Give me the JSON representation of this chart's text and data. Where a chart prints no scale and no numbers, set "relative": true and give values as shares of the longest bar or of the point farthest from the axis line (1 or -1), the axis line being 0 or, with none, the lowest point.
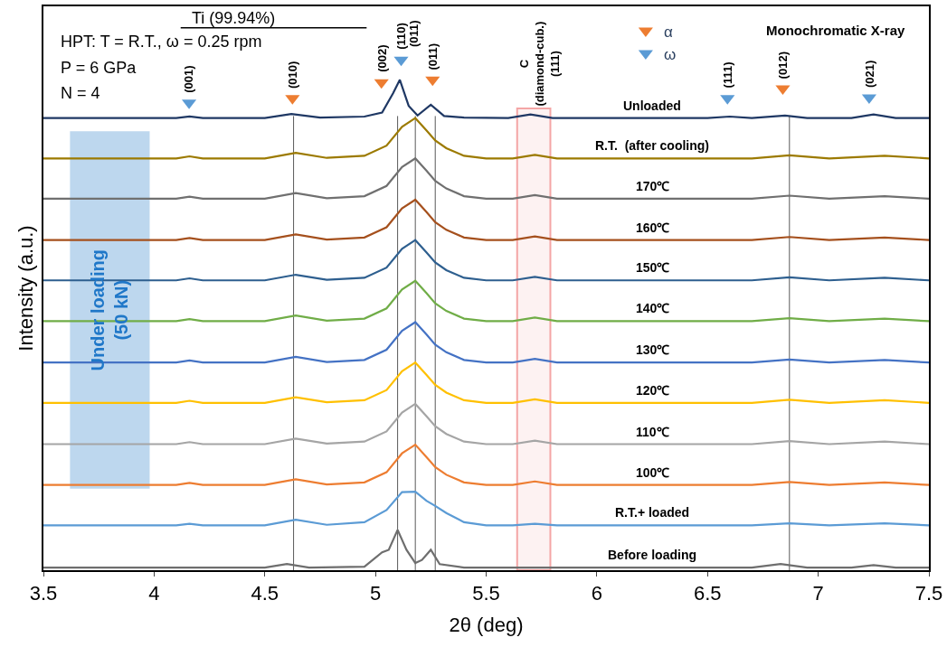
{
  "chart_data": {
    "type": "line",
    "relative": true,
    "xlabel": "2θ (deg)",
    "ylabel": "Intensity (a.u.)",
    "xlim": [
      3.5,
      7.5
    ],
    "xticks": [
      3.5,
      4,
      4.5,
      5,
      5.5,
      6,
      6.5,
      7,
      7.5
    ],
    "tick_labels": "x",
    "grid": false,
    "legend": "top right",
    "marker": "none",
    "line_style": "solid",
    "x": [
      3.5,
      4.1,
      4.16,
      4.22,
      4.5,
      4.64,
      4.78,
      4.95,
      5.05,
      5.12,
      5.18,
      5.23,
      5.27,
      5.32,
      5.4,
      5.5,
      5.62,
      5.72,
      5.82,
      6.7,
      6.87,
      7.05,
      7.3,
      7.5
    ],
    "series": [
      {
        "name": "Unloaded",
        "color": "#1f3864",
        "x": [
          3.5,
          4.1,
          4.16,
          4.22,
          4.5,
          4.62,
          4.75,
          4.95,
          5.03,
          5.08,
          5.11,
          5.15,
          5.19,
          5.25,
          5.31,
          5.4,
          5.6,
          5.7,
          5.8,
          6.5,
          6.6,
          6.7,
          6.85,
          6.95,
          7.15,
          7.25,
          7.35,
          7.5
        ],
        "values": [
          0.886,
          0.886,
          0.889,
          0.886,
          0.886,
          0.894,
          0.887,
          0.889,
          0.897,
          0.935,
          0.961,
          0.91,
          0.891,
          0.912,
          0.89,
          0.887,
          0.886,
          0.893,
          0.886,
          0.886,
          0.889,
          0.886,
          0.891,
          0.886,
          0.886,
          0.893,
          0.886,
          0.886
        ]
      },
      {
        "name": "R.T.  (after cooling)",
        "color": "#9c7a00",
        "values": [
          0.807,
          0.807,
          0.811,
          0.807,
          0.807,
          0.818,
          0.808,
          0.812,
          0.832,
          0.869,
          0.886,
          0.862,
          0.842,
          0.827,
          0.812,
          0.807,
          0.807,
          0.814,
          0.807,
          0.807,
          0.813,
          0.807,
          0.812,
          0.807
        ]
      },
      {
        "name": "170℃",
        "color": "#707070",
        "values": [
          0.728,
          0.728,
          0.732,
          0.728,
          0.728,
          0.739,
          0.729,
          0.733,
          0.753,
          0.79,
          0.807,
          0.783,
          0.763,
          0.748,
          0.733,
          0.728,
          0.728,
          0.735,
          0.728,
          0.728,
          0.734,
          0.728,
          0.733,
          0.728
        ]
      },
      {
        "name": "160℃",
        "color": "#a5501d",
        "values": [
          0.647,
          0.647,
          0.651,
          0.647,
          0.647,
          0.658,
          0.648,
          0.652,
          0.672,
          0.709,
          0.726,
          0.702,
          0.682,
          0.667,
          0.652,
          0.647,
          0.647,
          0.654,
          0.647,
          0.647,
          0.653,
          0.647,
          0.652,
          0.647
        ]
      },
      {
        "name": "150℃",
        "color": "#2e5f8f",
        "values": [
          0.568,
          0.568,
          0.572,
          0.568,
          0.568,
          0.579,
          0.569,
          0.573,
          0.593,
          0.63,
          0.647,
          0.623,
          0.603,
          0.588,
          0.573,
          0.568,
          0.568,
          0.575,
          0.568,
          0.568,
          0.574,
          0.568,
          0.573,
          0.568
        ]
      },
      {
        "name": "140℃",
        "color": "#70ad47",
        "values": [
          0.488,
          0.488,
          0.492,
          0.488,
          0.488,
          0.499,
          0.489,
          0.493,
          0.513,
          0.55,
          0.567,
          0.543,
          0.523,
          0.508,
          0.493,
          0.488,
          0.488,
          0.495,
          0.488,
          0.488,
          0.494,
          0.488,
          0.493,
          0.488
        ]
      },
      {
        "name": "130℃",
        "color": "#4472c4",
        "values": [
          0.407,
          0.407,
          0.411,
          0.407,
          0.407,
          0.418,
          0.408,
          0.412,
          0.432,
          0.469,
          0.486,
          0.462,
          0.442,
          0.427,
          0.412,
          0.407,
          0.407,
          0.414,
          0.407,
          0.407,
          0.413,
          0.407,
          0.412,
          0.407
        ]
      },
      {
        "name": "120℃",
        "color": "#ffc000",
        "values": [
          0.328,
          0.328,
          0.332,
          0.328,
          0.328,
          0.339,
          0.329,
          0.333,
          0.353,
          0.39,
          0.407,
          0.383,
          0.363,
          0.348,
          0.333,
          0.328,
          0.328,
          0.335,
          0.328,
          0.328,
          0.334,
          0.328,
          0.333,
          0.328
        ]
      },
      {
        "name": "110℃",
        "color": "#a5a5a5",
        "values": [
          0.247,
          0.247,
          0.251,
          0.247,
          0.247,
          0.258,
          0.248,
          0.252,
          0.272,
          0.309,
          0.326,
          0.302,
          0.282,
          0.267,
          0.252,
          0.247,
          0.247,
          0.254,
          0.247,
          0.247,
          0.253,
          0.247,
          0.252,
          0.247
        ]
      },
      {
        "name": "100℃",
        "color": "#ed7d31",
        "values": [
          0.167,
          0.167,
          0.171,
          0.167,
          0.167,
          0.178,
          0.168,
          0.172,
          0.192,
          0.229,
          0.246,
          0.222,
          0.202,
          0.187,
          0.172,
          0.167,
          0.167,
          0.174,
          0.167,
          0.167,
          0.173,
          0.167,
          0.172,
          0.167
        ]
      },
      {
        "name": "R.T.+ loaded",
        "color": "#5b9bd5",
        "values": [
          0.088,
          0.088,
          0.091,
          0.088,
          0.088,
          0.099,
          0.089,
          0.094,
          0.118,
          0.153,
          0.154,
          0.136,
          0.126,
          0.112,
          0.094,
          0.088,
          0.088,
          0.091,
          0.088,
          0.088,
          0.092,
          0.088,
          0.092,
          0.088
        ]
      },
      {
        "name": "Before loading",
        "color": "#6e6e6e",
        "x": [
          3.5,
          4.5,
          4.6,
          4.7,
          4.95,
          5.03,
          5.06,
          5.1,
          5.14,
          5.18,
          5.21,
          5.25,
          5.29,
          5.4,
          6.7,
          6.83,
          6.95,
          7.15,
          7.25,
          7.35,
          7.5
        ],
        "values": [
          0.005,
          0.005,
          0.012,
          0.005,
          0.007,
          0.035,
          0.04,
          0.079,
          0.04,
          0.014,
          0.02,
          0.04,
          0.012,
          0.005,
          0.005,
          0.012,
          0.005,
          0.005,
          0.01,
          0.005,
          0.005
        ]
      },
      {
        "name": "α",
        "type": "scatter",
        "marker": "triangle",
        "color": "#ed7d31",
        "x": [
          4.625,
          5.027,
          5.258,
          6.84
        ],
        "values": [
          0.925,
          0.956,
          0.961,
          0.944
        ]
      },
      {
        "name": "ω",
        "type": "scatter",
        "marker": "triangle",
        "color": "#5b9bd5",
        "x": [
          4.158,
          5.116,
          6.59,
          7.23
        ],
        "values": [
          0.916,
          1.0,
          0.925,
          0.926
        ]
      }
    ],
    "ref_lines": [
      {
        "axis": "x",
        "value": 4.63,
        "color": "#595959"
      },
      {
        "axis": "x",
        "value": 5.1,
        "color": "#595959"
      },
      {
        "axis": "x",
        "value": 5.18,
        "color": "#595959"
      },
      {
        "axis": "x",
        "value": 5.27,
        "color": "#595959"
      },
      {
        "axis": "x",
        "value": 6.87,
        "color": "#595959"
      }
    ],
    "bands": [
      {
        "axis": "x",
        "from": 5.64,
        "to": 5.79,
        "color": "#f4a6a6"
      },
      {
        "axis": "x",
        "from": 3.62,
        "to": 3.98,
        "color": "#bdd7ee",
        "label": "Under loading\n(50 kN)"
      }
    ],
    "annotations": [
      "Ti (99.94%)",
      "HPT: T = R.T., ω = 0.25 rpm",
      "P = 6 GPa",
      "N = 4",
      "Monochromatic X-ray",
      "C\n(diamond-cub.)\n(111)",
      "(011)",
      {
        "text": "(001)",
        "x": 4.158,
        "y": 0.916
      },
      {
        "text": "(010)",
        "x": 4.625,
        "y": 0.925
      },
      {
        "text": "(002)",
        "x": 5.027,
        "y": 0.956
      },
      {
        "text": "(110)",
        "x": 5.116,
        "y": 1.0
      },
      {
        "text": "(011)",
        "x": 5.258,
        "y": 0.961
      },
      {
        "text": "(111)",
        "x": 6.59,
        "y": 0.925
      },
      {
        "text": "(012)",
        "x": 6.84,
        "y": 0.944
      },
      {
        "text": "(021)",
        "x": 7.23,
        "y": 0.926
      }
    ]
  }
}
